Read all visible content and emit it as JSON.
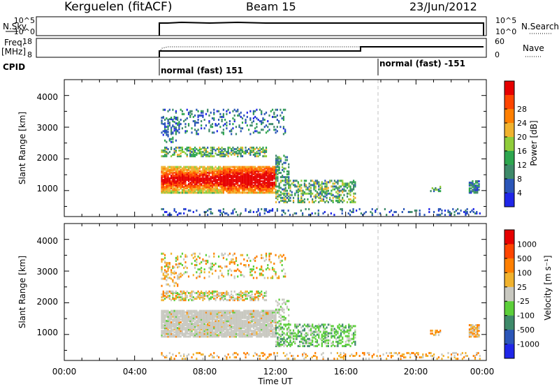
{
  "header": {
    "station": "Kerguelen (fitACF)",
    "beam": "Beam 15",
    "date": "23/Jun/2012"
  },
  "panels": {
    "nsky": {
      "left_label": "N.Sky",
      "right_label": "N.Search",
      "left_ticks": [
        "10^5",
        "10^0"
      ],
      "right_ticks": [
        "10^5",
        "10^0"
      ]
    },
    "freq": {
      "left_label_line1": "Freq.",
      "left_label_line2": "[MHz]",
      "right_label": "Nave",
      "left_ticks": [
        "18",
        "8"
      ],
      "right_ticks": [
        "60",
        "0"
      ]
    },
    "cpid": {
      "label": "CPID",
      "modes": [
        {
          "text": "normal (fast) 151",
          "start_hr": 5.4
        },
        {
          "text": "normal (fast) -151",
          "start_hr": 18.0
        }
      ]
    }
  },
  "chart_data": [
    {
      "type": "heatmap",
      "name": "power",
      "ylabel": "Slant Range [km]",
      "xlabel": "Time UT",
      "x_range_hours": [
        0,
        24
      ],
      "ylim": [
        180,
        4500
      ],
      "y_ticks": [
        1000,
        2000,
        3000,
        4000
      ],
      "x_tick_labels": [
        "00:00",
        "04:00",
        "08:00",
        "12:00",
        "16:00",
        "20:00",
        "00:00"
      ],
      "colorbar": {
        "label": "Power [dB]",
        "tick_labels": [
          "4",
          "8",
          "12",
          "16",
          "20",
          "24",
          "28"
        ],
        "colors": [
          "#1f26e8",
          "#2b56b8",
          "#3e8a6a",
          "#2ea64f",
          "#8fcc3a",
          "#f0b22e",
          "#ff7f00",
          "#ff4500",
          "#e60000"
        ]
      },
      "features": [
        {
          "desc_region": "core",
          "t": [
            5.5,
            12.0
          ],
          "r": [
            900,
            1750
          ],
          "level": "high"
        },
        {
          "desc_region": "upper band",
          "t": [
            5.5,
            11.5
          ],
          "r": [
            2050,
            2350
          ],
          "level": "medium"
        },
        {
          "desc_region": "top",
          "t": [
            5.5,
            12.5
          ],
          "r": [
            2800,
            3500
          ],
          "level": "low"
        },
        {
          "desc_region": "tail",
          "t": [
            12.0,
            16.5
          ],
          "r": [
            600,
            1300
          ],
          "level": "medium"
        },
        {
          "desc_region": "ground",
          "t": [
            5.5,
            23.5
          ],
          "r": [
            200,
            400
          ],
          "level": "low"
        }
      ]
    },
    {
      "type": "heatmap",
      "name": "velocity",
      "ylabel": "Slant Range [km]",
      "xlabel": "Time UT",
      "x_range_hours": [
        0,
        24
      ],
      "ylim": [
        180,
        4500
      ],
      "y_ticks": [
        1000,
        2000,
        3000,
        4000
      ],
      "x_tick_labels": [
        "00:00",
        "04:00",
        "08:00",
        "12:00",
        "16:00",
        "20:00",
        "00:00"
      ],
      "colorbar": {
        "label": "Velocity [m s⁻¹]",
        "tick_labels": [
          "1000",
          "500",
          "100",
          "25",
          "-25",
          "-100",
          "-500",
          "-1000"
        ],
        "colors": [
          "#1f26e8",
          "#2b56b8",
          "#3e8a6a",
          "#5ccf3a",
          "#c8c8c0",
          "#f0b22e",
          "#ff7f00",
          "#ff4500",
          "#e60000"
        ]
      }
    }
  ]
}
